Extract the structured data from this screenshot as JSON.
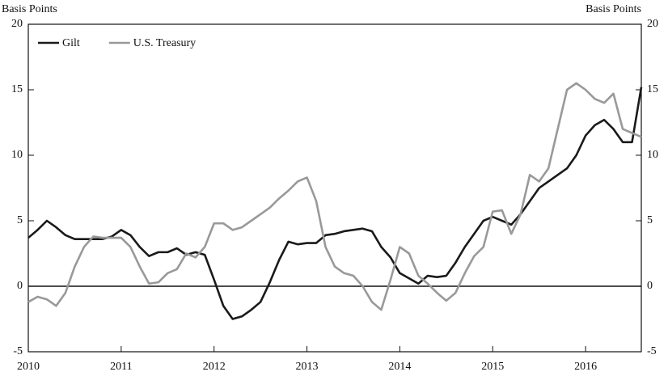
{
  "chart_data": {
    "type": "line",
    "y_label": "Basis Points",
    "y2_label": "Basis Points",
    "x": [
      2010.0,
      2010.1,
      2010.2,
      2010.3,
      2010.4,
      2010.5,
      2010.6,
      2010.7,
      2010.8,
      2010.9,
      2011.0,
      2011.1,
      2011.2,
      2011.3,
      2011.4,
      2011.5,
      2011.6,
      2011.7,
      2011.8,
      2011.9,
      2012.0,
      2012.1,
      2012.2,
      2012.3,
      2012.4,
      2012.5,
      2012.6,
      2012.7,
      2012.8,
      2012.9,
      2013.0,
      2013.1,
      2013.2,
      2013.3,
      2013.4,
      2013.5,
      2013.6,
      2013.7,
      2013.8,
      2013.9,
      2014.0,
      2014.1,
      2014.2,
      2014.3,
      2014.4,
      2014.5,
      2014.6,
      2014.7,
      2014.8,
      2014.9,
      2015.0,
      2015.1,
      2015.2,
      2015.3,
      2015.4,
      2015.5,
      2015.6,
      2015.7,
      2015.8,
      2015.9,
      2016.0,
      2016.1,
      2016.2,
      2016.3,
      2016.4,
      2016.5,
      2016.6
    ],
    "series": [
      {
        "name": "Gilt",
        "color": "#1a1a1a",
        "values": [
          3.7,
          4.3,
          5.0,
          4.5,
          3.9,
          3.6,
          3.6,
          3.6,
          3.6,
          3.8,
          4.3,
          3.9,
          3.0,
          2.3,
          2.6,
          2.6,
          2.9,
          2.4,
          2.6,
          2.4,
          0.5,
          -1.5,
          -2.5,
          -2.3,
          -1.8,
          -1.2,
          0.3,
          2.0,
          3.4,
          3.2,
          3.3,
          3.3,
          3.9,
          4.0,
          4.2,
          4.3,
          4.4,
          4.2,
          3.0,
          2.2,
          1.0,
          0.6,
          0.2,
          0.8,
          0.7,
          0.8,
          1.8,
          3.0,
          4.0,
          5.0,
          5.3,
          5.0,
          4.7,
          5.5,
          6.5,
          7.5,
          8.0,
          8.5,
          9.0,
          10.0,
          11.5,
          12.3,
          12.7,
          12.0,
          11.0,
          11.0,
          15.2
        ]
      },
      {
        "name": "U.S. Treasury",
        "color": "#999999",
        "values": [
          -1.2,
          -0.8,
          -1.0,
          -1.5,
          -0.5,
          1.5,
          3.0,
          3.8,
          3.7,
          3.7,
          3.7,
          3.0,
          1.5,
          0.2,
          0.3,
          1.0,
          1.3,
          2.5,
          2.2,
          3.0,
          4.8,
          4.8,
          4.3,
          4.5,
          5.0,
          5.5,
          6.0,
          6.7,
          7.3,
          8.0,
          8.3,
          6.5,
          3.0,
          1.5,
          1.0,
          0.8,
          0.0,
          -1.2,
          -1.8,
          0.5,
          3.0,
          2.5,
          0.8,
          0.2,
          -0.5,
          -1.1,
          -0.5,
          1.0,
          2.3,
          3.0,
          5.7,
          5.8,
          4.0,
          5.5,
          8.5,
          8.0,
          9.0,
          12.0,
          15.0,
          15.5,
          15.0,
          14.3,
          14.0,
          14.7,
          12.0,
          11.7,
          11.4
        ]
      }
    ],
    "xlim": [
      2010,
      2016.6
    ],
    "xticks": [
      2010,
      2011,
      2012,
      2013,
      2014,
      2015,
      2016
    ],
    "ylim": [
      -5,
      20
    ],
    "yticks": [
      -5,
      0,
      5,
      10,
      15,
      20
    ],
    "y2lim": [
      -5,
      20
    ],
    "y2ticks": [
      -5,
      0,
      5,
      10,
      15,
      20
    ],
    "legend": "top-left"
  }
}
